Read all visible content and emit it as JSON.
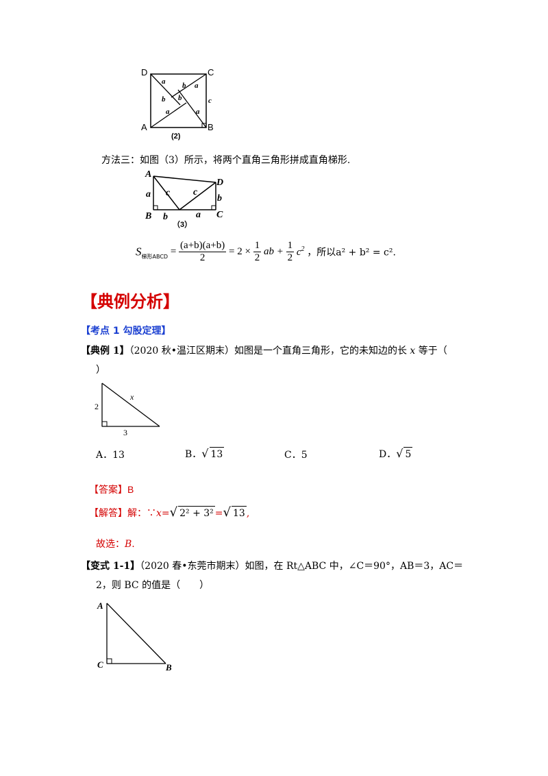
{
  "figure2": {
    "vertices": {
      "D": "D",
      "C": "C",
      "A": "A",
      "B": "B"
    },
    "sides": {
      "a": "a",
      "b": "b",
      "c": "c"
    },
    "caption": "(2)"
  },
  "method3": {
    "text": "方法三：如图（3）所示，将两个直角三角形拼成直角梯形."
  },
  "figure3": {
    "vertices": {
      "A": "A",
      "B": "B",
      "C": "C",
      "D": "D"
    },
    "sides": {
      "a": "a",
      "b": "b",
      "c": "c"
    },
    "caption": "（3）"
  },
  "formula": {
    "S": "S",
    "subscript": "梯形ABCD",
    "eq": "=",
    "numerator": "(a+b)(a+b)",
    "denominator": "2",
    "rhs": "= 2 ×",
    "half": "1",
    "two": "2",
    "ab": "ab +",
    "c2": "c",
    "conclusion": "，所以a² + b² = c²."
  },
  "section": {
    "title": "【典例分析】"
  },
  "topic1": {
    "label": "【考点 1 勾股定理】"
  },
  "example1": {
    "tag": "【典例 1】",
    "source": "（2020 秋•温江区期末）如图是一个直角三角形，它的未知边的长",
    "var": "x",
    "suffix": "等于（",
    "cont": "）",
    "fig": {
      "left": "2",
      "bottom": "3",
      "hyp": "x"
    },
    "options": {
      "A": "A．13",
      "B_prefix": "B．",
      "B_root": "13",
      "C": "C．5",
      "D_prefix": "D．",
      "D_root": "5"
    },
    "answer_tag": "【答案】",
    "answer": "B",
    "solution_tag": "【解答】",
    "solution_prefix": "解：∵",
    "solution_x": "x",
    "solution_eq": "=",
    "solution_inner": "2² + 3²",
    "solution_eq2": "=",
    "solution_result": "13",
    "solution_end": ",",
    "choose": "故选：",
    "choose_val": "B",
    "choose_end": "."
  },
  "variant1": {
    "tag": "【变式 1-1】",
    "text": "（2020 春•东莞市期末）如图，在 Rt△ABC 中，∠C＝90°，AB＝3，AC＝",
    "text2": "2，则 BC 的值是（　　）",
    "fig": {
      "A": "A",
      "B": "B",
      "C": "C"
    }
  }
}
